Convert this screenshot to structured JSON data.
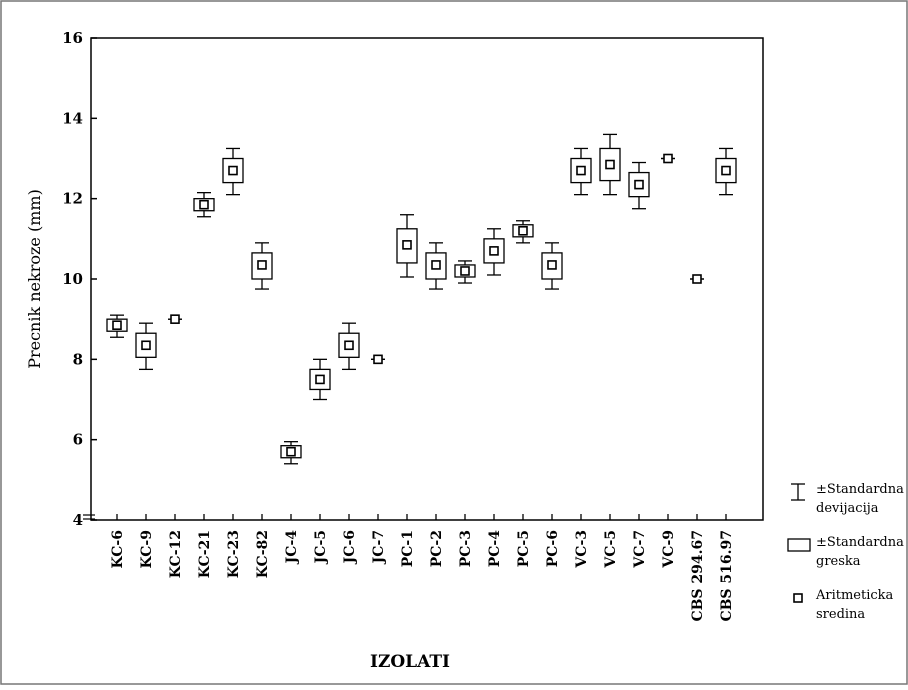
{
  "chart_data": {
    "type": "box",
    "xlabel": "IZOLATI",
    "ylabel": "Precnik nekroze (mm)",
    "ylim": [
      4,
      16
    ],
    "yticks": [
      "4",
      "6",
      "8",
      "10",
      "12",
      "14",
      "16"
    ],
    "grid": false,
    "legend_position": "bottom-right",
    "legend": [
      {
        "symbol": "whisker",
        "lines": [
          "±Standardna",
          "devijacija"
        ]
      },
      {
        "symbol": "box",
        "lines": [
          "±Standardna",
          "greska"
        ]
      },
      {
        "symbol": "mean",
        "lines": [
          "Aritmeticka",
          "sredina"
        ]
      }
    ],
    "categories": [
      "KC-6",
      "KC-9",
      "KC-12",
      "KC-21",
      "KC-23",
      "KC-82",
      "JC-4",
      "JC-5",
      "JC-6",
      "JC-7",
      "PC-1",
      "PC-2",
      "PC-3",
      "PC-4",
      "PC-5",
      "PC-6",
      "VC-3",
      "VC-5",
      "VC-7",
      "VC-9",
      "CBS 294.67",
      "CBS 516.97"
    ],
    "mean": [
      8.85,
      8.35,
      9.0,
      11.85,
      12.7,
      10.35,
      5.7,
      7.5,
      8.35,
      8.0,
      10.85,
      10.35,
      10.2,
      10.7,
      11.2,
      10.35,
      12.7,
      12.85,
      12.35,
      13.0,
      10.0,
      12.7
    ],
    "se_low": [
      8.7,
      8.05,
      9.0,
      11.7,
      12.4,
      10.0,
      5.55,
      7.25,
      8.05,
      8.0,
      10.4,
      10.0,
      10.05,
      10.4,
      11.05,
      10.0,
      12.4,
      12.45,
      12.05,
      13.0,
      10.0,
      12.4
    ],
    "se_high": [
      9.0,
      8.65,
      9.0,
      12.0,
      13.0,
      10.65,
      5.85,
      7.75,
      8.65,
      8.0,
      11.25,
      10.65,
      10.35,
      11.0,
      11.35,
      10.65,
      13.0,
      13.25,
      12.65,
      13.0,
      10.0,
      13.0
    ],
    "sd_low": [
      8.55,
      7.75,
      9.0,
      11.55,
      12.1,
      9.75,
      5.4,
      7.0,
      7.75,
      8.0,
      10.05,
      9.75,
      9.9,
      10.1,
      10.9,
      9.75,
      12.1,
      12.1,
      11.75,
      13.0,
      10.0,
      12.1
    ],
    "sd_high": [
      9.1,
      8.9,
      9.0,
      12.15,
      13.25,
      10.9,
      5.95,
      8.0,
      8.9,
      8.0,
      11.6,
      10.9,
      10.45,
      11.25,
      11.45,
      10.9,
      13.25,
      13.6,
      12.9,
      13.0,
      10.0,
      13.25
    ]
  }
}
